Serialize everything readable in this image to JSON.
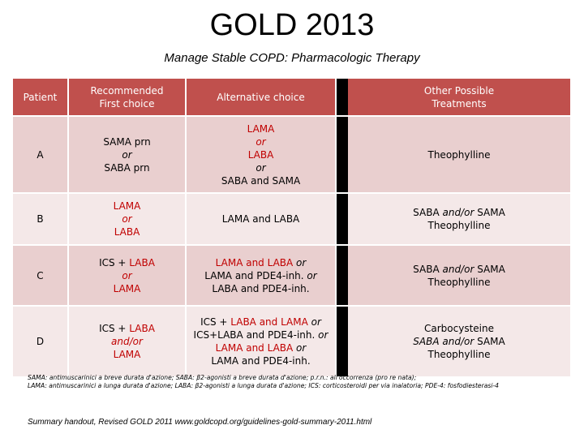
{
  "title": "GOLD 2013",
  "subtitle": "Manage Stable COPD:  Pharmacologic Therapy",
  "headers": {
    "patient": "Patient",
    "first_l1": "Recommended",
    "first_l2": "First choice",
    "alternative": "Alternative choice",
    "other_l1": "Other Possible",
    "other_l2": "Treatments"
  },
  "rows": [
    {
      "patient": "A",
      "first": [
        "SAMA  prn",
        "or",
        "SABA prn"
      ],
      "alt": [
        "LAMA",
        "or",
        "LABA",
        "or",
        "SABA and SAMA"
      ],
      "other": [
        "Theophylline"
      ]
    },
    {
      "patient": "B",
      "first": [
        "LAMA",
        "or",
        "LABA"
      ],
      "alt": [
        "LAMA and LABA"
      ],
      "other": [
        "SABA ",
        "and/or",
        " SAMA",
        "Theophylline"
      ]
    },
    {
      "patient": "C",
      "first": [
        "ICS + ",
        "LABA",
        "or",
        "LAMA"
      ],
      "alt": [
        "LAMA and LABA",
        " or",
        "LAMA and PDE4-inh.",
        " or",
        "LABA and PDE4-inh."
      ],
      "other": [
        "SABA ",
        "and/or",
        " SAMA",
        "Theophylline"
      ]
    },
    {
      "patient": "D",
      "first": [
        "ICS + ",
        "LABA",
        "and/or",
        "LAMA"
      ],
      "alt": [
        "ICS + ",
        "LABA and LAMA",
        " or",
        "ICS+LABA and PDE4-inh.",
        " or",
        "LAMA and LABA",
        " or",
        "LAMA and PDE4-inh."
      ],
      "other": [
        "Carbocysteine",
        "SABA ",
        "and/or",
        " SAMA",
        "Theophylline"
      ]
    }
  ],
  "footnote": {
    "line1": "SAMA: antimuscarinici a breve durata d'azione; SABA: β2-agonisti a breve durata d'azione; p.r.n.: all'occorrenza (pro re nata);",
    "line2": "LAMA: antimuscarinici a lunga durata d'azione; LABA: β2-agonisti a lunga durata d'azione; ICS: corticosteroidi per via inalatoria;  PDE-4: fosfodiesterasi-4"
  },
  "source": "Summary handout, Revised GOLD 2011 www.goldcopd.org/guidelines-gold-summary-2011.html",
  "colors": {
    "header_bg": "#c0504d",
    "row_odd": "#e9cfcf",
    "row_even": "#f4e8e8",
    "highlight": "#c00000",
    "separator": "#000000"
  }
}
